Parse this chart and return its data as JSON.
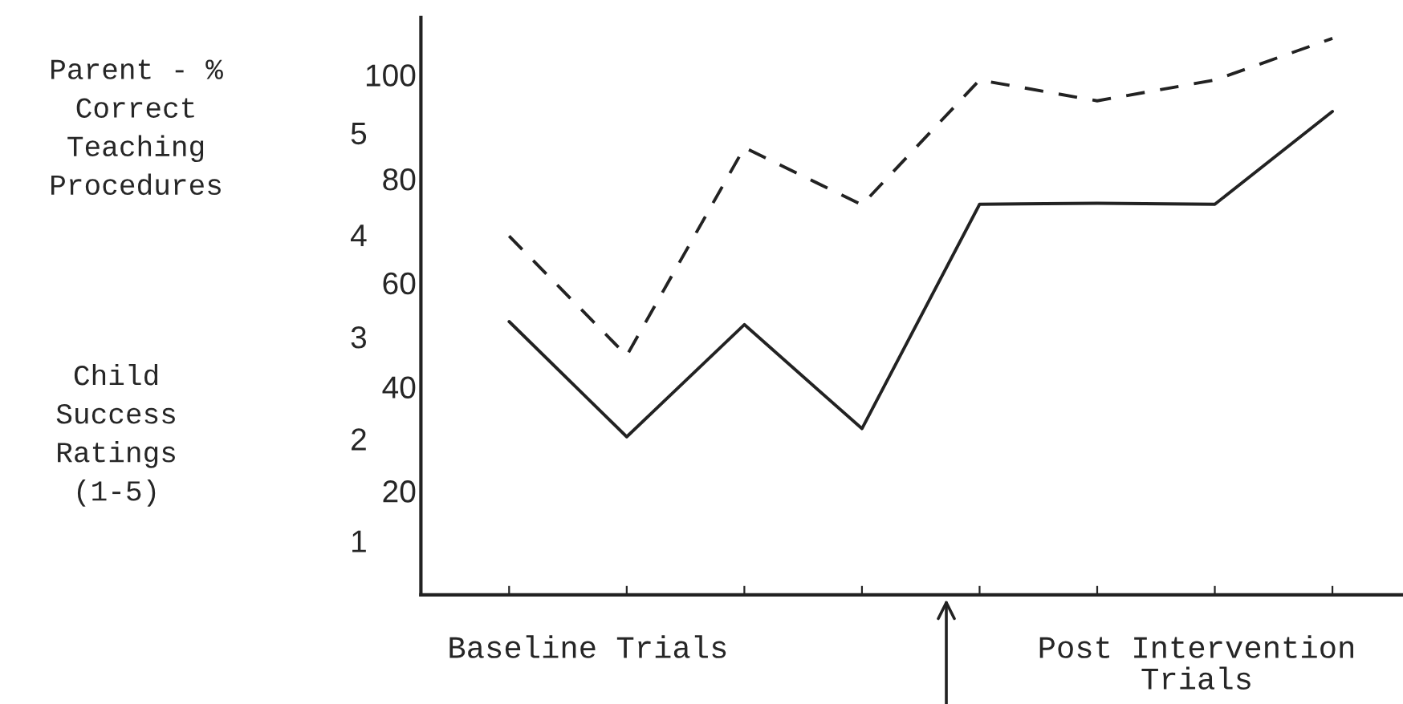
{
  "chart_data": {
    "type": "line",
    "categories": [
      null,
      null,
      null,
      null,
      null,
      null,
      null,
      null
    ],
    "series": [
      {
        "color": "#222222",
        "line_style": "dashed",
        "values": [
          69,
          46,
          86,
          75,
          99,
          95,
          99,
          107
        ]
      },
      {
        "color": "#222222",
        "line_style": "solid",
        "axis": "y2",
        "values": [
          3.15,
          2.02,
          3.12,
          2.1,
          4.3,
          4.31,
          4.3,
          5.21
        ]
      }
    ],
    "ylim": [
      0,
      111
    ],
    "yticks": [
      20,
      40,
      60,
      80,
      100
    ],
    "y2lim": [
      0.47,
      6.13
    ],
    "y2ticks": [
      1,
      2,
      3,
      4,
      5
    ],
    "annotations": [
      "Parent - %\nCorrect\nTeaching\nProcedures",
      "Child\nSuccess\nRatings\n(1-5)",
      "Baseline Trials",
      "Post Intervention\nTrials"
    ]
  }
}
